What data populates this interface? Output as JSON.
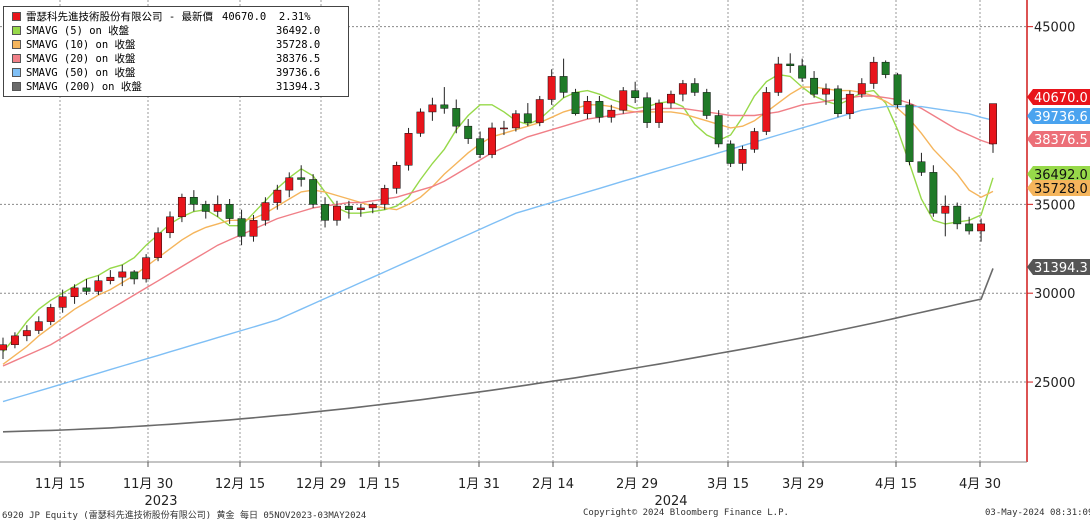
{
  "chart_data": {
    "type": "candlestick",
    "title": "",
    "legend": [
      {
        "label": "雷瑟科先進技術股份有限公司 - 最新價",
        "value": "40670.0",
        "change": "2.31%",
        "color": "#e8141b"
      },
      {
        "label": "SMAVG (5)  on 收盤",
        "value": "36492.0",
        "color": "#97d94a"
      },
      {
        "label": "SMAVG (10)  on 收盤",
        "value": "35728.0",
        "color": "#f5b55c"
      },
      {
        "label": "SMAVG (20)  on 收盤",
        "value": "38376.5",
        "color": "#f07f87"
      },
      {
        "label": "SMAVG (50)  on 收盤",
        "value": "39736.6",
        "color": "#7fbff5"
      },
      {
        "label": "SMAVG (200)  on 收盤",
        "value": "31394.3",
        "color": "#6a6a6a"
      }
    ],
    "y_axis": {
      "ticks": [
        "45000",
        "35000",
        "30000",
        "25000"
      ],
      "ylim": [
        20500,
        46500
      ],
      "position": "right"
    },
    "x_axis": {
      "ticks": [
        "11月 15",
        "11月 30",
        "12月 15",
        "12月 29",
        "1月 15",
        "1月 31",
        "2月 14",
        "2月 29",
        "3月 15",
        "3月 29",
        "4月 15",
        "4月 30"
      ],
      "years": [
        "2023",
        "2024"
      ]
    },
    "last_value_tags": [
      {
        "value": "40670.0",
        "color": "#e8141b"
      },
      {
        "value": "39736.6",
        "color": "#4aa3ef"
      },
      {
        "value": "38376.5",
        "color": "#ec6f78"
      },
      {
        "value": "36492.0",
        "color": "#97d94a"
      },
      {
        "value": "35728.0",
        "color": "#f5b55c"
      },
      {
        "value": "31394.3",
        "color": "#555555"
      }
    ],
    "series": [
      {
        "name": "SMAVG (5)  on 收盤",
        "color": "#97d94a",
        "values": [
          26700,
          27500,
          28400,
          29100,
          29600,
          30000,
          30400,
          30800,
          31000,
          31400,
          31600,
          32000,
          32700,
          33300,
          33900,
          34300,
          34600,
          34700,
          34300,
          33800,
          33800,
          34500,
          35200,
          35900,
          36500,
          37000,
          36600,
          35700,
          34800,
          34500,
          34500,
          34600,
          34700,
          34900,
          35400,
          36400,
          37300,
          38100,
          39200,
          40000,
          40600,
          40600,
          40200,
          39700,
          39500,
          39800,
          40400,
          41000,
          41300,
          41400,
          41200,
          40900,
          40700,
          40400,
          40500,
          40700,
          40800,
          40500,
          39500,
          38900,
          38600,
          38900,
          39900,
          41100,
          41900,
          42300,
          42200,
          41600,
          41100,
          40800,
          40600,
          40900,
          41300,
          41400,
          40700,
          39200,
          37300,
          35300,
          34100,
          33900,
          34000,
          34100,
          34400,
          36492
        ]
      },
      {
        "name": "SMAVG (10)  on 收盤",
        "color": "#f5b55c",
        "values": [
          26000,
          26500,
          27000,
          27600,
          28100,
          28600,
          29100,
          29500,
          29900,
          30200,
          30600,
          31000,
          31500,
          32000,
          32500,
          33000,
          33400,
          33700,
          33900,
          34100,
          34100,
          34200,
          34500,
          34900,
          35300,
          35700,
          35800,
          35700,
          35500,
          35300,
          35100,
          34900,
          34800,
          34700,
          35000,
          35400,
          36000,
          36700,
          37300,
          37900,
          38400,
          38800,
          39000,
          39200,
          39400,
          39600,
          39900,
          40200,
          40400,
          40600,
          40600,
          40500,
          40300,
          40200,
          40200,
          40200,
          40200,
          40100,
          39900,
          39700,
          39500,
          39300,
          39400,
          39700,
          40200,
          40700,
          41200,
          41600,
          41600,
          41500,
          41400,
          41400,
          41300,
          41100,
          40800,
          40400,
          39800,
          39000,
          38100,
          37400,
          36700,
          35800,
          35400,
          35728
        ]
      },
      {
        "name": "SMAVG (20)  on 收盤",
        "color": "#f07f87",
        "values": [
          25900,
          26200,
          26500,
          26800,
          27100,
          27500,
          27900,
          28300,
          28700,
          29100,
          29500,
          29900,
          30300,
          30700,
          31100,
          31500,
          31900,
          32300,
          32700,
          33000,
          33300,
          33600,
          33900,
          34200,
          34400,
          34600,
          34800,
          34900,
          35000,
          35100,
          35100,
          35200,
          35300,
          35400,
          35600,
          35800,
          36000,
          36300,
          36700,
          37100,
          37500,
          37900,
          38200,
          38500,
          38800,
          39000,
          39200,
          39400,
          39600,
          39800,
          39900,
          40000,
          40100,
          40200,
          40300,
          40400,
          40400,
          40400,
          40300,
          40200,
          40100,
          40000,
          40000,
          40000,
          40100,
          40200,
          40400,
          40600,
          40700,
          40800,
          40900,
          41000,
          41100,
          41100,
          41000,
          40900,
          40700,
          40400,
          40000,
          39600,
          39200,
          38900,
          38600,
          38376
        ]
      },
      {
        "name": "SMAVG (50)  on 收盤",
        "color": "#7fbff5",
        "values": [
          23900,
          24100,
          24300,
          24500,
          24700,
          24900,
          25100,
          25300,
          25500,
          25700,
          25900,
          26100,
          26300,
          26500,
          26700,
          26900,
          27100,
          27300,
          27500,
          27700,
          27900,
          28100,
          28300,
          28500,
          28800,
          29100,
          29400,
          29700,
          30000,
          30300,
          30600,
          30900,
          31200,
          31500,
          31800,
          32100,
          32400,
          32700,
          33000,
          33300,
          33600,
          33900,
          34200,
          34500,
          34700,
          34900,
          35100,
          35300,
          35500,
          35700,
          35900,
          36100,
          36300,
          36500,
          36700,
          36900,
          37100,
          37300,
          37500,
          37700,
          37900,
          38100,
          38300,
          38500,
          38700,
          38900,
          39100,
          39300,
          39500,
          39700,
          39900,
          40100,
          40300,
          40400,
          40500,
          40500,
          40500,
          40500,
          40400,
          40300,
          40200,
          40100,
          39900,
          39737
        ]
      },
      {
        "name": "SMAVG (200)  on 收盤",
        "color": "#6a6a6a",
        "values": [
          22200,
          22220,
          22240,
          22260,
          22280,
          22300,
          22330,
          22360,
          22390,
          22420,
          22460,
          22500,
          22540,
          22580,
          22620,
          22670,
          22720,
          22770,
          22820,
          22870,
          22930,
          22990,
          23050,
          23110,
          23170,
          23240,
          23310,
          23380,
          23450,
          23520,
          23600,
          23680,
          23760,
          23840,
          23920,
          24000,
          24090,
          24180,
          24270,
          24360,
          24450,
          24540,
          24640,
          24740,
          24840,
          24940,
          25040,
          25140,
          25240,
          25350,
          25460,
          25570,
          25680,
          25790,
          25900,
          26010,
          26130,
          26250,
          26370,
          26490,
          26610,
          26730,
          26850,
          26970,
          27100,
          27230,
          27360,
          27490,
          27620,
          27760,
          27900,
          28040,
          28180,
          28320,
          28470,
          28620,
          28770,
          28920,
          29070,
          29220,
          29370,
          29520,
          29670,
          31394
        ]
      }
    ],
    "candles": [
      [
        26800,
        27500,
        26300,
        27100
      ],
      [
        27100,
        27800,
        26900,
        27600
      ],
      [
        27600,
        28200,
        27300,
        27900
      ],
      [
        27900,
        28700,
        27700,
        28400
      ],
      [
        28400,
        29400,
        28200,
        29200
      ],
      [
        29200,
        30200,
        28900,
        29800
      ],
      [
        29800,
        30500,
        29400,
        30300
      ],
      [
        30300,
        30800,
        29900,
        30100
      ],
      [
        30100,
        31000,
        29900,
        30700
      ],
      [
        30700,
        31300,
        30500,
        30900
      ],
      [
        30900,
        31600,
        30400,
        31200
      ],
      [
        31200,
        31300,
        30500,
        30800
      ],
      [
        30800,
        32200,
        30600,
        32000
      ],
      [
        32000,
        33700,
        31800,
        33400
      ],
      [
        33400,
        34600,
        33100,
        34300
      ],
      [
        34300,
        35600,
        34000,
        35400
      ],
      [
        35400,
        35800,
        34600,
        35000
      ],
      [
        35000,
        35200,
        34200,
        34600
      ],
      [
        34600,
        35500,
        34300,
        35000
      ],
      [
        35000,
        35300,
        33900,
        34200
      ],
      [
        34200,
        34700,
        32700,
        33200
      ],
      [
        33200,
        34400,
        32900,
        34100
      ],
      [
        34100,
        35400,
        33800,
        35100
      ],
      [
        35100,
        36100,
        34700,
        35800
      ],
      [
        35800,
        36800,
        35400,
        36500
      ],
      [
        36500,
        37200,
        36000,
        36400
      ],
      [
        36400,
        36700,
        34800,
        35000
      ],
      [
        35000,
        35400,
        33700,
        34100
      ],
      [
        34100,
        35200,
        33800,
        34900
      ],
      [
        34900,
        35200,
        34200,
        34700
      ],
      [
        34700,
        35000,
        34300,
        34800
      ],
      [
        34800,
        35100,
        34500,
        35000
      ],
      [
        35000,
        36100,
        34700,
        35900
      ],
      [
        35900,
        37400,
        35600,
        37200
      ],
      [
        37200,
        39300,
        36900,
        39000
      ],
      [
        39000,
        40400,
        38800,
        40200
      ],
      [
        40200,
        41000,
        39700,
        40600
      ],
      [
        40600,
        41600,
        40100,
        40400
      ],
      [
        40400,
        40900,
        39000,
        39400
      ],
      [
        39400,
        39800,
        38400,
        38700
      ],
      [
        38700,
        39100,
        37600,
        37800
      ],
      [
        37800,
        39600,
        37600,
        39300
      ],
      [
        39300,
        39700,
        38900,
        39300
      ],
      [
        39300,
        40300,
        39100,
        40100
      ],
      [
        40100,
        40700,
        39400,
        39600
      ],
      [
        39600,
        41100,
        39400,
        40900
      ],
      [
        40900,
        42600,
        40600,
        42200
      ],
      [
        42200,
        43200,
        41000,
        41300
      ],
      [
        41300,
        41500,
        40000,
        40100
      ],
      [
        40100,
        41100,
        39800,
        40800
      ],
      [
        40800,
        41100,
        39600,
        39900
      ],
      [
        39900,
        40600,
        39600,
        40300
      ],
      [
        40300,
        41600,
        40100,
        41400
      ],
      [
        41400,
        41900,
        40700,
        41000
      ],
      [
        41000,
        41300,
        39300,
        39600
      ],
      [
        39600,
        40900,
        39300,
        40700
      ],
      [
        40700,
        41400,
        40400,
        41200
      ],
      [
        41200,
        42000,
        40800,
        41800
      ],
      [
        41800,
        42100,
        41100,
        41300
      ],
      [
        41300,
        41500,
        39800,
        40000
      ],
      [
        40000,
        40300,
        38200,
        38400
      ],
      [
        38400,
        38600,
        37100,
        37300
      ],
      [
        37300,
        38300,
        36900,
        38100
      ],
      [
        38100,
        39300,
        37900,
        39100
      ],
      [
        39100,
        41600,
        38900,
        41300
      ],
      [
        41300,
        43300,
        41100,
        42900
      ],
      [
        42900,
        43500,
        42400,
        42800
      ],
      [
        42800,
        43200,
        41900,
        42100
      ],
      [
        42100,
        42500,
        41000,
        41200
      ],
      [
        41200,
        41800,
        40600,
        41500
      ],
      [
        41500,
        41700,
        39900,
        40100
      ],
      [
        40100,
        41400,
        39800,
        41200
      ],
      [
        41200,
        42100,
        41000,
        41800
      ],
      [
        41800,
        43300,
        41500,
        43000
      ],
      [
        43000,
        43100,
        42100,
        42300
      ],
      [
        42300,
        42400,
        40400,
        40600
      ],
      [
        40600,
        40900,
        37200,
        37400
      ],
      [
        37400,
        37900,
        36600,
        36800
      ],
      [
        36800,
        37200,
        34300,
        34500
      ],
      [
        34500,
        35500,
        33200,
        34900
      ],
      [
        34900,
        35100,
        33600,
        33900
      ],
      [
        33900,
        34300,
        33300,
        33500
      ],
      [
        33500,
        34200,
        32900,
        33900
      ],
      [
        38400,
        40600,
        37900,
        40670
      ]
    ]
  },
  "footer": {
    "left": "6920 JP Equity (雷瑟科先進技術股份有限公司) 黄金  每日 05NOV2023-03MAY2024",
    "center": "Copyright© 2024 Bloomberg Finance L.P.",
    "right": "03-May-2024 08:31:09"
  }
}
